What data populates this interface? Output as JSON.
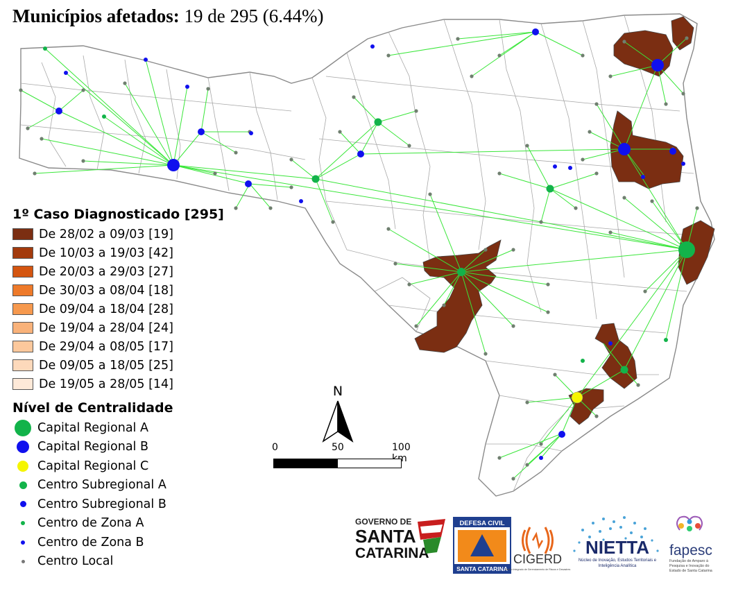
{
  "header": {
    "label": "Municípios afetados:",
    "value": "19 de 295 (6.44%)"
  },
  "legend": {
    "first_case": {
      "title": "1º Caso Diagnosticado [295]",
      "items": [
        {
          "label": "De 28/02 a 09/03 [19]",
          "color": "#7b2e12"
        },
        {
          "label": "De 10/03 a 19/03 [42]",
          "color": "#a33a0c"
        },
        {
          "label": "De 20/03 a 29/03 [27]",
          "color": "#d45510"
        },
        {
          "label": "De 30/03 a 08/04 [18]",
          "color": "#ee7a2a"
        },
        {
          "label": "De 09/04 a 18/04 [28]",
          "color": "#f6994e"
        },
        {
          "label": "De 19/04 a 28/04 [24]",
          "color": "#f9b27a"
        },
        {
          "label": "De 29/04 a 08/05 [17]",
          "color": "#fcc89c"
        },
        {
          "label": "De 09/05 a 18/05 [25]",
          "color": "#fdd9bb"
        },
        {
          "label": "De 19/05 a 28/05 [14]",
          "color": "#fee9d8"
        }
      ]
    },
    "centrality": {
      "title": "Nível de Centralidade",
      "items": [
        {
          "label": "Capital Regional A",
          "color": "#12b34a",
          "size": 24
        },
        {
          "label": "Capital Regional B",
          "color": "#1010ee",
          "size": 18
        },
        {
          "label": "Capital Regional C",
          "color": "#f5f500",
          "size": 16
        },
        {
          "label": "Centro Subregional A",
          "color": "#12b34a",
          "size": 11
        },
        {
          "label": "Centro Subregional B",
          "color": "#1010ee",
          "size": 9
        },
        {
          "label": "Centro de Zona A",
          "color": "#12b34a",
          "size": 6
        },
        {
          "label": "Centro de Zona B",
          "color": "#1010ee",
          "size": 6
        },
        {
          "label": "Centro Local",
          "color": "#777777",
          "size": 5
        }
      ]
    }
  },
  "north_arrow": {
    "label": "N"
  },
  "scale_bar": {
    "labels": [
      "0",
      "50",
      "100 km"
    ]
  },
  "logos": {
    "governo": {
      "line1": "GOVERNO DE",
      "line2": "SANTA",
      "line3": "CATARINA"
    },
    "defesa_civil": {
      "top": "DEFESA CIVIL",
      "bottom": "SANTA CATARINA"
    },
    "cigerd": {
      "name": "CIGERD",
      "sub": "Centro Integrado de Gerenciamento de Riscos e Desastres"
    },
    "nietta": {
      "name": "NIETTA",
      "sub1": "Núcleo de Inovação, Estudos Territoriais e",
      "sub2": "Inteligência Analítica"
    },
    "fapesc": {
      "name": "fapesc",
      "sub1": "Fundação de Amparo à",
      "sub2": "Pesquisa e Inovação do",
      "sub3": "Estado de Santa Catarina"
    }
  },
  "colors": {
    "link_line": "#39e639",
    "boundary": "#8a8a8a",
    "affected_fill": "#7b2e12"
  }
}
